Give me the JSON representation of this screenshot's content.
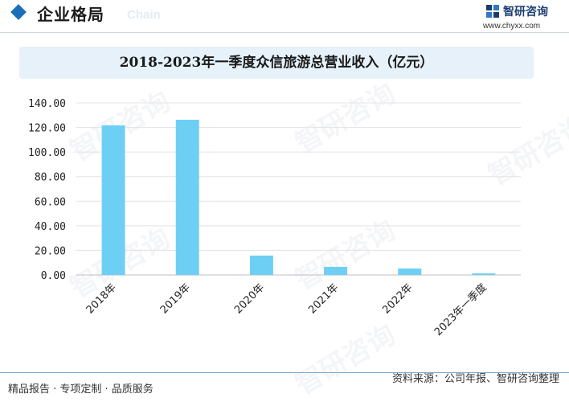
{
  "header": {
    "title": "企业格局",
    "title_en": "Chain",
    "logo_name": "智研咨询",
    "logo_url": "www.chyxx.com"
  },
  "watermark": "智研咨询",
  "footer": {
    "left": "精品报告 · 专项定制 · 品质服务",
    "right": "资料来源：公司年报、智研咨询整理"
  },
  "colors": {
    "bar": "#6ecff5",
    "accent": "#1b6fb8",
    "title_bg": "#e6f1f9"
  },
  "chart_data": {
    "type": "bar",
    "title": "2018-2023年一季度众信旅游总营业收入（亿元）",
    "categories": [
      "2018年",
      "2019年",
      "2020年",
      "2021年",
      "2022年",
      "2023年一季度"
    ],
    "values": [
      121.8,
      126.3,
      15.8,
      6.6,
      5.3,
      1.3
    ],
    "ylim": [
      0,
      140
    ],
    "yticks": [
      "0.00",
      "20.00",
      "40.00",
      "60.00",
      "80.00",
      "100.00",
      "120.00",
      "140.00"
    ],
    "grid": true,
    "xlabel": "",
    "ylabel": ""
  }
}
